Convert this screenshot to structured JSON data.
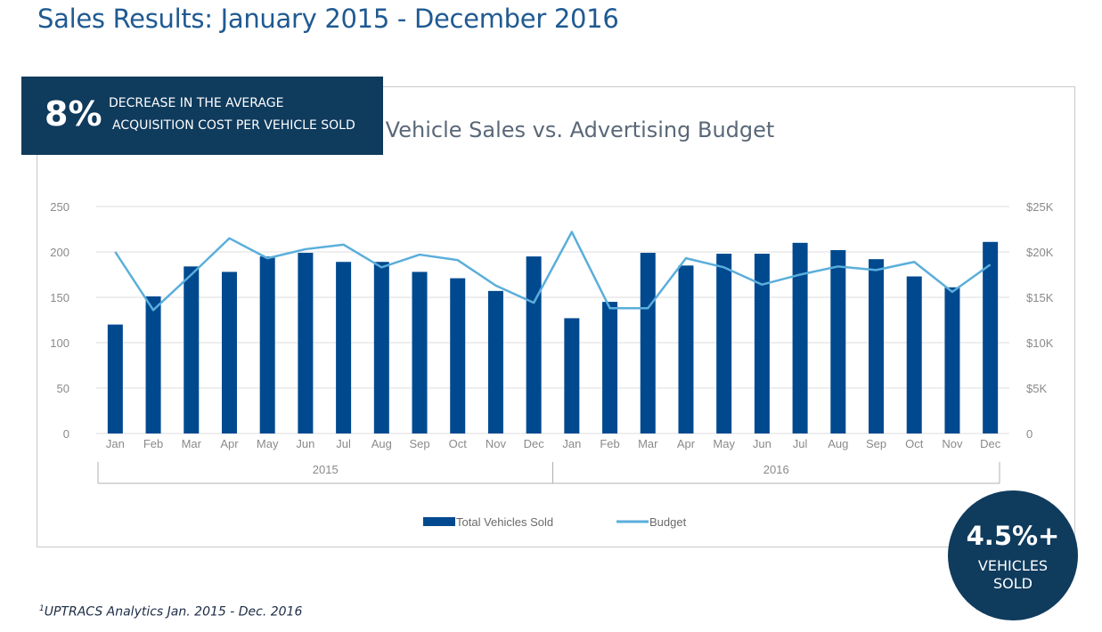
{
  "page": {
    "title": "Sales Results: January 2015 - December 2016",
    "footnote_mark": "1",
    "footnote": "UPTRACS Analytics Jan. 2015 - Dec. 2016"
  },
  "kpi_box": {
    "value": "8%",
    "line1": "DECREASE IN THE AVERAGE",
    "line2": "ACQUISITION COST PER VEHICLE SOLD"
  },
  "kpi_circle": {
    "value": "4.5%+",
    "line1": "VEHICLES",
    "line2": "SOLD"
  },
  "colors": {
    "bar": "#00498f",
    "line": "#5aaedb",
    "dark_navy": "#0f3b5d",
    "title_blue": "#1f5a92",
    "axis_text": "#8a8a8a"
  },
  "chart_data": {
    "type": "bar",
    "title": "Vehicle Sales vs. Advertising Budget",
    "categories": [
      "Jan",
      "Feb",
      "Mar",
      "Apr",
      "May",
      "Jun",
      "Jul",
      "Aug",
      "Sep",
      "Oct",
      "Nov",
      "Dec",
      "Jan",
      "Feb",
      "Mar",
      "Apr",
      "May",
      "Jun",
      "Jul",
      "Aug",
      "Sep",
      "Oct",
      "Nov",
      "Dec"
    ],
    "groups": [
      {
        "label": "2015",
        "start": 0,
        "end": 11
      },
      {
        "label": "2016",
        "start": 12,
        "end": 23
      }
    ],
    "series": [
      {
        "name": "Total Vehicles Sold",
        "type": "bar",
        "axis": "left",
        "values": [
          120,
          151,
          184,
          178,
          195,
          199,
          189,
          189,
          178,
          171,
          157,
          195,
          127,
          145,
          199,
          185,
          198,
          198,
          210,
          202,
          192,
          173,
          161,
          211
        ]
      },
      {
        "name": "Budget",
        "type": "line",
        "axis": "right",
        "values": [
          20000,
          13600,
          17500,
          21500,
          19300,
          20300,
          20800,
          18300,
          19700,
          19100,
          16300,
          14400,
          22200,
          13800,
          13800,
          19300,
          18300,
          16400,
          17500,
          18400,
          18000,
          18900,
          15600,
          18600
        ]
      }
    ],
    "y_left": {
      "min": 0,
      "max": 250,
      "ticks": [
        0,
        50,
        100,
        150,
        200,
        250
      ],
      "tick_labels": [
        "0",
        "50",
        "100",
        "150",
        "200",
        "250"
      ]
    },
    "y_right": {
      "min": 0,
      "max": 25000,
      "ticks": [
        0,
        5000,
        10000,
        15000,
        20000,
        25000
      ],
      "tick_labels": [
        "0",
        "$5K",
        "$10K",
        "$15K",
        "$20K",
        "$25K"
      ]
    },
    "grid": true,
    "legend_position": "bottom-center"
  }
}
